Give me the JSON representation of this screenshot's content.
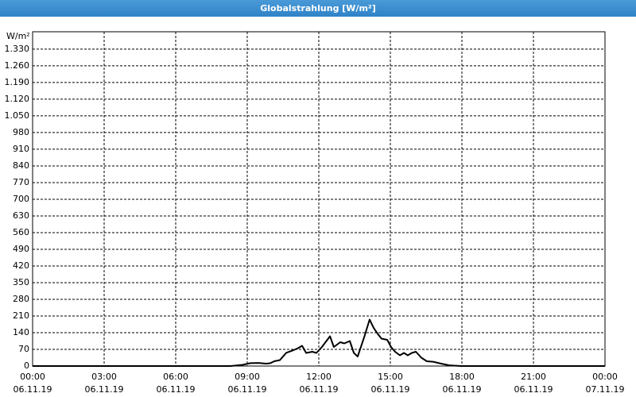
{
  "chart_data": {
    "type": "line",
    "title": "Globalstrahlung [W/m²]",
    "ylabel": "W/m²",
    "x": [
      0,
      8.3,
      8.8,
      9.13,
      9.47,
      9.8,
      9.97,
      10.13,
      10.37,
      10.63,
      10.9,
      11.13,
      11.3,
      11.47,
      11.73,
      11.9,
      12.13,
      12.47,
      12.63,
      12.9,
      13.07,
      13.3,
      13.47,
      13.63,
      13.9,
      14.13,
      14.3,
      14.47,
      14.63,
      14.87,
      15.03,
      15.2,
      15.4,
      15.57,
      15.73,
      15.9,
      16.07,
      16.3,
      16.53,
      16.8,
      17.13,
      17.47,
      17.97,
      24
    ],
    "series": [
      {
        "name": "Globalstrahlung",
        "color": "#000000",
        "values": [
          0,
          0,
          5,
          12,
          13,
          10,
          12,
          20,
          25,
          55,
          65,
          75,
          85,
          55,
          60,
          55,
          80,
          125,
          80,
          100,
          95,
          105,
          55,
          40,
          120,
          195,
          160,
          135,
          115,
          110,
          80,
          60,
          45,
          55,
          45,
          55,
          60,
          35,
          20,
          18,
          10,
          3,
          0,
          0
        ]
      }
    ],
    "xlim": [
      0,
      24
    ],
    "xticks": [
      {
        "value": 0,
        "label": "00:00"
      },
      {
        "value": 3,
        "label": "03:00"
      },
      {
        "value": 6,
        "label": "06:00"
      },
      {
        "value": 9,
        "label": "09:00"
      },
      {
        "value": 12,
        "label": "12:00"
      },
      {
        "value": 15,
        "label": "15:00"
      },
      {
        "value": 18,
        "label": "18:00"
      },
      {
        "value": 21,
        "label": "21:00"
      },
      {
        "value": 24,
        "label": "00:00"
      }
    ],
    "xtick_dates": [
      "06.11.19",
      "06.11.19",
      "06.11.19",
      "06.11.19",
      "06.11.19",
      "06.11.19",
      "06.11.19",
      "06.11.19",
      "07.11.19"
    ],
    "ylim": [
      0,
      1403
    ],
    "yticks": [
      0,
      70,
      140,
      210,
      280,
      350,
      420,
      490,
      560,
      630,
      700,
      770,
      840,
      910,
      980,
      {
        "value": 1050,
        "label": "1.050"
      },
      {
        "value": 1120,
        "label": "1.120"
      },
      {
        "value": 1190,
        "label": "1.190"
      },
      {
        "value": 1260,
        "label": "1.260"
      },
      {
        "value": 1330,
        "label": "1.330"
      }
    ],
    "grid": true
  }
}
